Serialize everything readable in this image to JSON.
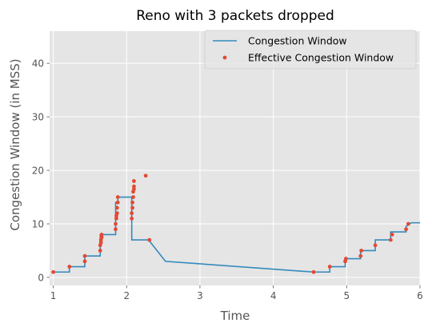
{
  "chart_data": {
    "type": "line",
    "title": "Reno with 3 packets dropped",
    "xlabel": "Time",
    "ylabel": "Congestion Window (in MSS)",
    "xlim": [
      0.95,
      6.0
    ],
    "ylim": [
      -1.5,
      46
    ],
    "xticks": [
      1,
      2,
      3,
      4,
      5,
      6
    ],
    "yticks": [
      0,
      10,
      20,
      30,
      40
    ],
    "grid": true,
    "legend_position": "top-right",
    "series": [
      {
        "name": "Congestion Window",
        "kind": "line",
        "color": "#348abd",
        "x": [
          1.0,
          1.22,
          1.22,
          1.43,
          1.43,
          1.64,
          1.64,
          1.85,
          1.85,
          1.88,
          1.88,
          2.07,
          2.07,
          2.3,
          2.53,
          4.55,
          4.77,
          4.77,
          4.98,
          4.98,
          5.19,
          5.19,
          5.39,
          5.39,
          5.6,
          5.6,
          5.81,
          5.81,
          5.88,
          6.0
        ],
        "y": [
          1,
          1,
          2,
          2,
          4,
          4,
          8,
          8,
          14,
          14,
          15,
          15,
          7,
          7,
          3,
          1,
          1,
          2,
          2,
          3.5,
          3.5,
          5,
          5,
          7,
          7,
          8.5,
          8.5,
          9.5,
          10.2,
          10.2
        ]
      },
      {
        "name": "Effective Congestion Window",
        "kind": "scatter",
        "color": "#e24a33",
        "x": [
          1.0,
          1.22,
          1.43,
          1.43,
          1.64,
          1.64,
          1.65,
          1.65,
          1.66,
          1.66,
          1.85,
          1.85,
          1.86,
          1.86,
          1.87,
          1.87,
          1.88,
          1.88,
          2.07,
          2.07,
          2.08,
          2.08,
          2.09,
          2.09,
          2.1,
          2.1,
          2.1,
          2.26,
          2.31,
          4.55,
          4.77,
          4.98,
          4.99,
          5.19,
          5.2,
          5.39,
          5.6,
          5.62,
          5.81,
          5.84
        ],
        "y": [
          1,
          2,
          3,
          4,
          5,
          6,
          6.5,
          7,
          7.5,
          8,
          9,
          10,
          11,
          11.5,
          12,
          13,
          14,
          15,
          11,
          12,
          13,
          14,
          15,
          16,
          16.5,
          17,
          18,
          19,
          7,
          1,
          2,
          3,
          3.5,
          4,
          5,
          6,
          7,
          8,
          9,
          10
        ]
      }
    ]
  }
}
